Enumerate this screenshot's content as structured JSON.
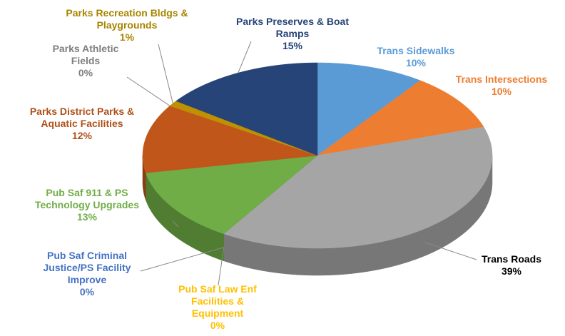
{
  "chart_data": {
    "type": "pie3d",
    "categories": [
      "Trans Sidewalks",
      "Trans Intersections",
      "Trans Roads",
      "Pub Saf Law Enf Facilities & Equipment",
      "Pub Saf Criminal Justice/PS Facility Improve",
      "Pub Saf 911 & PS Technology Upgrades",
      "Parks District Parks & Aquatic Facilities",
      "Parks Athletic Fields",
      "Parks Recreation Bldgs & Playgrounds",
      "Parks Preserves & Boat Ramps"
    ],
    "values": [
      10,
      10,
      39,
      0,
      0,
      13,
      12,
      0,
      1,
      15
    ],
    "value_labels": [
      "10%",
      "10%",
      "39%",
      "0%",
      "0%",
      "13%",
      "12%",
      "0%",
      "1%",
      "15%"
    ],
    "colors": [
      "#5b9bd5",
      "#ed7d31",
      "#a5a5a5",
      "#ffc000",
      "#4472c4",
      "#70ad47",
      "#c0561a",
      "#8c8c8c",
      "#bf9000",
      "#264478"
    ],
    "label_colors": [
      "#5b9bd5",
      "#ed7d31",
      "#000000",
      "#ffc000",
      "#4472c4",
      "#70ad47",
      "#b0501a",
      "#7f7f7f",
      "#a88400",
      "#264478"
    ]
  }
}
